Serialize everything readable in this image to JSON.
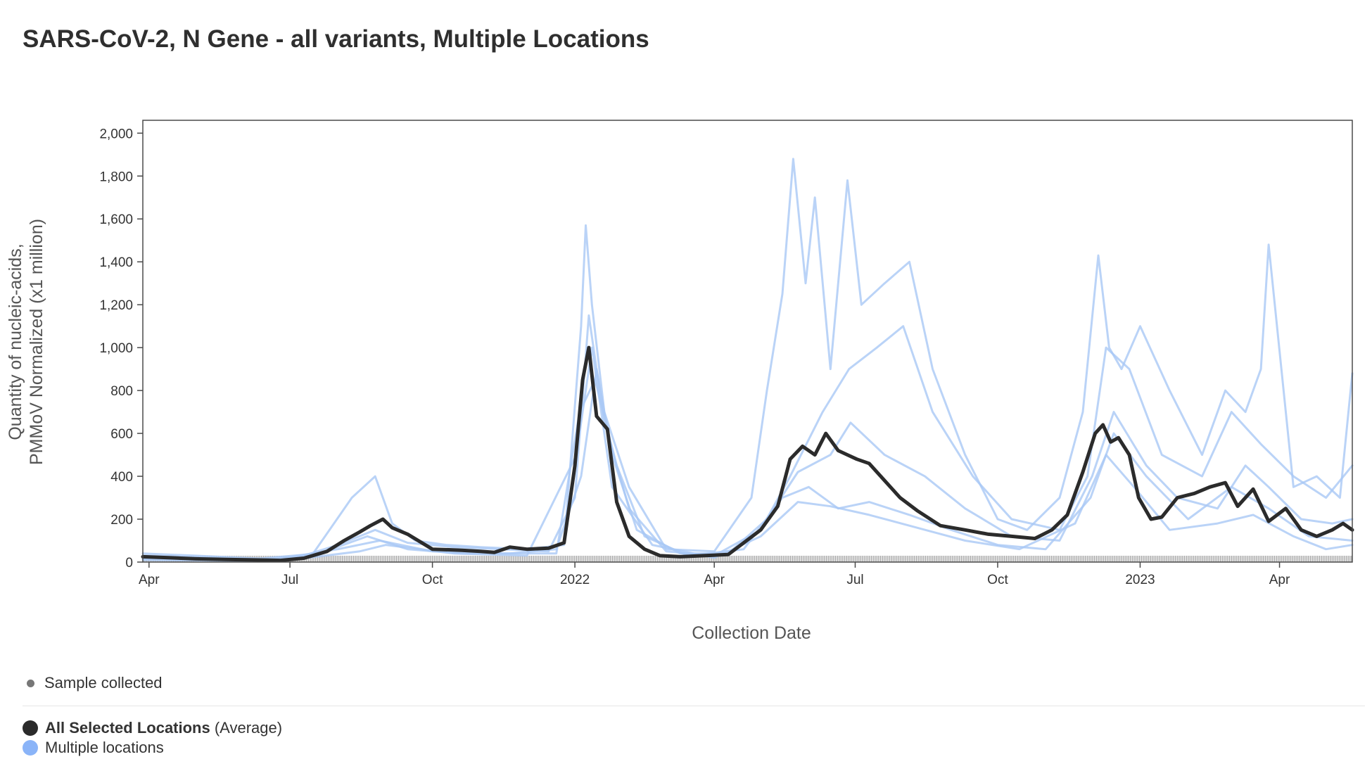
{
  "title": "SARS-CoV-2, N Gene - all variants, Multiple Locations",
  "legend": {
    "sample_label": "Sample collected",
    "average_label": "All Selected Locations",
    "average_suffix": "(Average)",
    "locations_label": "Multiple locations"
  },
  "colors": {
    "average_line": "#2b2b2b",
    "location_lines": "#a9c8f5",
    "location_dot": "#8ab4f8",
    "sample_marks": "#9e9e9e"
  },
  "chart_data": {
    "type": "line",
    "title": "SARS-CoV-2, N Gene - all variants, Multiple Locations",
    "xlabel": "Collection Date",
    "ylabel": "Quantity of nucleic-acids, PMMoV Normalized (x1 million)",
    "ylabel_lines": [
      "Quantity of nucleic-acids,",
      "PMMoV Normalized (x1 million)"
    ],
    "xlim": [
      "2021-03-28",
      "2023-05-18"
    ],
    "ylim": [
      0,
      2060
    ],
    "yticks": [
      0,
      200,
      400,
      600,
      800,
      1000,
      1200,
      1400,
      1600,
      1800,
      2000
    ],
    "ytick_labels": [
      "0",
      "200",
      "400",
      "600",
      "800",
      "1,000",
      "1,200",
      "1,400",
      "1,600",
      "1,800",
      "2,000"
    ],
    "xticks": [
      {
        "date": "2021-04-01",
        "label": "Apr"
      },
      {
        "date": "2021-07-01",
        "label": "Jul"
      },
      {
        "date": "2021-10-01",
        "label": "Oct"
      },
      {
        "date": "2022-01-01",
        "label": "2022"
      },
      {
        "date": "2022-04-01",
        "label": "Apr"
      },
      {
        "date": "2022-07-01",
        "label": "Jul"
      },
      {
        "date": "2022-10-01",
        "label": "Oct"
      },
      {
        "date": "2023-01-01",
        "label": "2023"
      },
      {
        "date": "2023-04-01",
        "label": "Apr"
      }
    ],
    "series": [
      {
        "name": "All Selected Locations (Average)",
        "role": "average",
        "x": [
          "2021-03-28",
          "2021-04-15",
          "2021-05-01",
          "2021-05-20",
          "2021-06-10",
          "2021-06-25",
          "2021-07-10",
          "2021-07-25",
          "2021-08-05",
          "2021-08-15",
          "2021-08-22",
          "2021-08-30",
          "2021-09-05",
          "2021-09-15",
          "2021-10-01",
          "2021-10-20",
          "2021-11-01",
          "2021-11-10",
          "2021-11-20",
          "2021-12-01",
          "2021-12-15",
          "2021-12-25",
          "2022-01-01",
          "2022-01-06",
          "2022-01-10",
          "2022-01-15",
          "2022-01-22",
          "2022-01-28",
          "2022-02-05",
          "2022-02-15",
          "2022-02-25",
          "2022-03-10",
          "2022-03-25",
          "2022-04-10",
          "2022-04-20",
          "2022-05-01",
          "2022-05-12",
          "2022-05-20",
          "2022-05-28",
          "2022-06-05",
          "2022-06-12",
          "2022-06-20",
          "2022-06-26",
          "2022-07-02",
          "2022-07-10",
          "2022-07-20",
          "2022-07-30",
          "2022-08-10",
          "2022-08-25",
          "2022-09-10",
          "2022-09-25",
          "2022-10-10",
          "2022-10-25",
          "2022-11-05",
          "2022-11-15",
          "2022-11-25",
          "2022-12-03",
          "2022-12-08",
          "2022-12-13",
          "2022-12-18",
          "2022-12-25",
          "2022-12-31",
          "2023-01-08",
          "2023-01-15",
          "2023-01-25",
          "2023-02-05",
          "2023-02-15",
          "2023-02-25",
          "2023-03-05",
          "2023-03-15",
          "2023-03-25",
          "2023-04-05",
          "2023-04-15",
          "2023-04-25",
          "2023-05-05",
          "2023-05-12",
          "2023-05-18"
        ],
        "y": [
          25,
          20,
          15,
          12,
          10,
          8,
          18,
          50,
          100,
          140,
          170,
          200,
          160,
          130,
          60,
          55,
          50,
          45,
          70,
          60,
          65,
          90,
          450,
          850,
          1000,
          680,
          620,
          280,
          120,
          60,
          30,
          25,
          30,
          35,
          90,
          150,
          260,
          480,
          540,
          500,
          600,
          520,
          500,
          480,
          460,
          380,
          300,
          240,
          170,
          150,
          130,
          120,
          110,
          150,
          220,
          420,
          600,
          640,
          560,
          580,
          500,
          300,
          200,
          210,
          300,
          320,
          350,
          370,
          260,
          340,
          190,
          250,
          150,
          120,
          150,
          180,
          150
        ]
      },
      {
        "name": "Multiple locations",
        "role": "location",
        "x": [
          "2021-03-28",
          "2021-05-01",
          "2021-06-15",
          "2021-07-15",
          "2021-08-10",
          "2021-08-25",
          "2021-09-05",
          "2021-09-20",
          "2021-10-10",
          "2021-11-01",
          "2021-12-01",
          "2021-12-25",
          "2022-01-05",
          "2022-01-08",
          "2022-01-12",
          "2022-01-20",
          "2022-02-05",
          "2022-03-01",
          "2022-04-01",
          "2022-04-25",
          "2022-05-05",
          "2022-05-15",
          "2022-05-22",
          "2022-05-30",
          "2022-06-05",
          "2022-06-15",
          "2022-06-26",
          "2022-07-05",
          "2022-07-20",
          "2022-08-05",
          "2022-08-20",
          "2022-09-10",
          "2022-10-01",
          "2022-10-20",
          "2022-11-10",
          "2022-11-25",
          "2022-12-05",
          "2022-12-12",
          "2022-12-20",
          "2023-01-01",
          "2023-01-20",
          "2023-02-10",
          "2023-02-25",
          "2023-03-10",
          "2023-03-20",
          "2023-03-25",
          "2023-04-10",
          "2023-04-25",
          "2023-05-10",
          "2023-05-18"
        ],
        "y": [
          40,
          30,
          15,
          30,
          300,
          400,
          180,
          100,
          80,
          70,
          60,
          80,
          1100,
          1570,
          1200,
          700,
          350,
          60,
          50,
          300,
          800,
          1250,
          1880,
          1300,
          1700,
          900,
          1780,
          1200,
          1300,
          1400,
          900,
          500,
          200,
          150,
          300,
          700,
          1430,
          1000,
          900,
          1100,
          800,
          500,
          800,
          700,
          900,
          1480,
          350,
          400,
          300,
          880
        ]
      },
      {
        "name": "",
        "role": "location",
        "x": [
          "2021-03-28",
          "2021-05-15",
          "2021-07-01",
          "2021-08-01",
          "2021-08-25",
          "2021-09-15",
          "2021-10-15",
          "2021-11-15",
          "2021-12-15",
          "2022-01-01",
          "2022-01-10",
          "2022-01-20",
          "2022-02-05",
          "2022-03-01",
          "2022-04-01",
          "2022-05-01",
          "2022-05-20",
          "2022-06-10",
          "2022-06-27",
          "2022-07-15",
          "2022-08-01",
          "2022-08-20",
          "2022-09-15",
          "2022-10-10",
          "2022-11-10",
          "2022-11-28",
          "2022-12-10",
          "2022-12-25",
          "2023-01-15",
          "2023-02-10",
          "2023-03-01",
          "2023-03-20",
          "2023-04-10",
          "2023-05-01",
          "2023-05-18"
        ],
        "y": [
          30,
          20,
          10,
          80,
          150,
          90,
          70,
          60,
          50,
          300,
          1150,
          650,
          250,
          50,
          30,
          150,
          400,
          700,
          900,
          1000,
          1100,
          700,
          400,
          200,
          150,
          400,
          1000,
          900,
          500,
          400,
          700,
          550,
          400,
          300,
          450
        ]
      },
      {
        "name": "",
        "role": "location",
        "x": [
          "2021-03-28",
          "2021-06-01",
          "2021-07-20",
          "2021-08-20",
          "2021-09-15",
          "2021-10-20",
          "2021-11-20",
          "2021-12-20",
          "2022-01-05",
          "2022-01-15",
          "2022-01-25",
          "2022-02-10",
          "2022-03-10",
          "2022-04-10",
          "2022-05-05",
          "2022-05-25",
          "2022-06-15",
          "2022-06-28",
          "2022-07-20",
          "2022-08-15",
          "2022-09-10",
          "2022-10-10",
          "2022-11-10",
          "2022-12-01",
          "2022-12-15",
          "2023-01-05",
          "2023-01-25",
          "2023-02-20",
          "2023-03-10",
          "2023-03-25",
          "2023-04-15",
          "2023-05-05",
          "2023-05-18"
        ],
        "y": [
          20,
          10,
          40,
          120,
          60,
          40,
          40,
          60,
          400,
          900,
          500,
          150,
          40,
          40,
          200,
          420,
          500,
          650,
          500,
          400,
          250,
          120,
          100,
          400,
          700,
          450,
          300,
          250,
          450,
          350,
          200,
          180,
          200
        ]
      },
      {
        "name": "",
        "role": "location",
        "x": [
          "2021-03-28",
          "2021-06-15",
          "2021-08-01",
          "2021-08-28",
          "2021-10-01",
          "2021-11-15",
          "2021-12-20",
          "2022-01-04",
          "2022-01-14",
          "2022-01-28",
          "2022-02-15",
          "2022-03-15",
          "2022-04-20",
          "2022-05-15",
          "2022-06-01",
          "2022-06-20",
          "2022-07-10",
          "2022-08-05",
          "2022-09-01",
          "2022-10-01",
          "2022-11-01",
          "2022-11-30",
          "2022-12-15",
          "2023-01-05",
          "2023-02-01",
          "2023-03-01",
          "2023-03-25",
          "2023-04-20",
          "2023-05-18"
        ],
        "y": [
          10,
          5,
          60,
          100,
          50,
          40,
          40,
          700,
          850,
          450,
          120,
          30,
          60,
          300,
          350,
          250,
          280,
          220,
          150,
          80,
          60,
          300,
          600,
          400,
          200,
          350,
          250,
          120,
          100
        ]
      },
      {
        "name": "",
        "role": "location",
        "x": [
          "2021-03-28",
          "2021-07-01",
          "2021-08-15",
          "2021-09-01",
          "2021-10-15",
          "2021-12-01",
          "2022-01-02",
          "2022-01-12",
          "2022-01-25",
          "2022-02-20",
          "2022-04-01",
          "2022-05-01",
          "2022-05-25",
          "2022-06-15",
          "2022-07-10",
          "2022-08-10",
          "2022-09-10",
          "2022-10-15",
          "2022-11-20",
          "2022-12-10",
          "2022-12-28",
          "2023-01-20",
          "2023-02-20",
          "2023-03-15",
          "2023-04-10",
          "2023-05-01",
          "2023-05-18"
        ],
        "y": [
          15,
          10,
          50,
          80,
          40,
          30,
          500,
          1000,
          350,
          80,
          20,
          120,
          280,
          260,
          220,
          160,
          100,
          60,
          180,
          500,
          350,
          150,
          180,
          220,
          120,
          60,
          80
        ]
      }
    ]
  }
}
